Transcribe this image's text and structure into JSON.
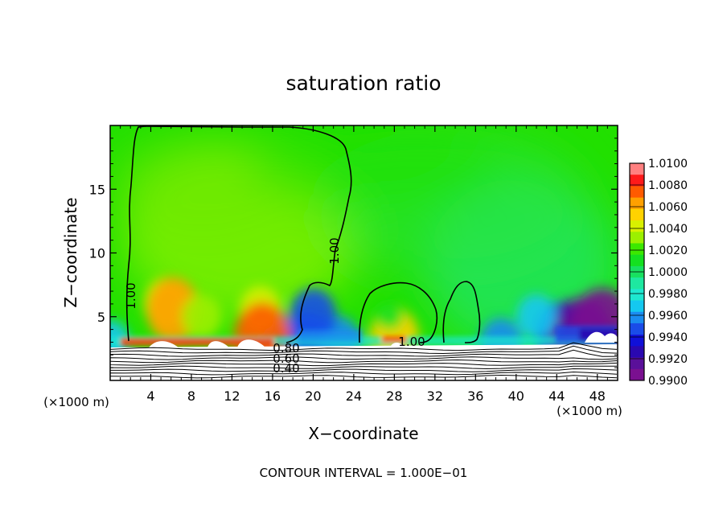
{
  "chart_data": {
    "type": "heatmap",
    "title": "saturation ratio",
    "xlabel": "X−coordinate",
    "ylabel": "Z−coordinate",
    "x_unit_label": "(×1000 m)",
    "z_unit_label": "(×1000 m)",
    "footer": "CONTOUR INTERVAL = 1.000E−01",
    "xlim": [
      0,
      50
    ],
    "ylim": [
      0,
      20
    ],
    "x_ticks": [
      4,
      8,
      12,
      16,
      20,
      24,
      28,
      32,
      36,
      40,
      44,
      48
    ],
    "x_tick_labels": [
      "4",
      "8",
      "12",
      "16",
      "20",
      "24",
      "28",
      "32",
      "36",
      "40",
      "44",
      "48"
    ],
    "y_ticks": [
      5,
      10,
      15
    ],
    "y_tick_labels": [
      "5",
      "10",
      "15"
    ],
    "colorbar": {
      "min": 0.99,
      "max": 1.01,
      "labels": [
        "1.0100",
        "1.0080",
        "1.0060",
        "1.0040",
        "1.0020",
        "1.0000",
        "0.9980",
        "0.9960",
        "0.9940",
        "0.9920",
        "0.9900"
      ],
      "colors": [
        "#ff8080",
        "#ff1a1a",
        "#ff5a00",
        "#ffa000",
        "#ffd200",
        "#d8f000",
        "#9cf000",
        "#3ce800",
        "#14e020",
        "#18e060",
        "#1ee8a0",
        "#1ee8d0",
        "#14c8f0",
        "#1a8cf0",
        "#1a4ce8",
        "#1010d8",
        "#2a08b0",
        "#5a109a",
        "#7a1090"
      ]
    },
    "contour_labels": [
      {
        "text": "1.00",
        "x": 2.2,
        "z": 6.5
      },
      {
        "text": "1.00",
        "x": 17.5,
        "z": 10.5
      },
      {
        "text": "1.00",
        "x": 29.5,
        "z": 3.0
      },
      {
        "text": "0.80",
        "x": 17.5,
        "z": 2.6
      },
      {
        "text": "0.60",
        "x": 17.5,
        "z": 1.8
      },
      {
        "text": "0.40",
        "x": 17.5,
        "z": 1.0
      }
    ],
    "bands": [
      {
        "x": 0,
        "z": 3,
        "value": 0.9965
      },
      {
        "x": 17,
        "z": 3,
        "value": 0.9955
      },
      {
        "x": 19.5,
        "z": 3,
        "value": 0.9945
      },
      {
        "x": 22.5,
        "z": 3,
        "value": 0.9955
      },
      {
        "x": 38.5,
        "z": 3,
        "value": 0.996
      },
      {
        "x": 44.5,
        "z": 3.5,
        "value": 0.9935
      },
      {
        "x": 46.5,
        "z": 3.2,
        "value": 0.9915
      },
      {
        "x": 48.5,
        "z": 3.6,
        "value": 0.9905
      },
      {
        "x": 5.5,
        "z": 6,
        "value": 1.0045
      },
      {
        "x": 6.2,
        "z": 5.5,
        "value": 1.0062
      },
      {
        "x": 9.0,
        "z": 5,
        "value": 1.0035
      },
      {
        "x": 14.8,
        "z": 5.5,
        "value": 1.004
      },
      {
        "x": 15.0,
        "z": 3.3,
        "value": 1.007
      },
      {
        "x": 28.0,
        "z": 3.3,
        "value": 1.0055
      },
      {
        "x": 27.5,
        "z": 5,
        "value": 1.0012
      },
      {
        "x": 20.0,
        "z": 5,
        "value": 0.995
      },
      {
        "x": 42.0,
        "z": 5,
        "value": 0.9965
      }
    ]
  }
}
